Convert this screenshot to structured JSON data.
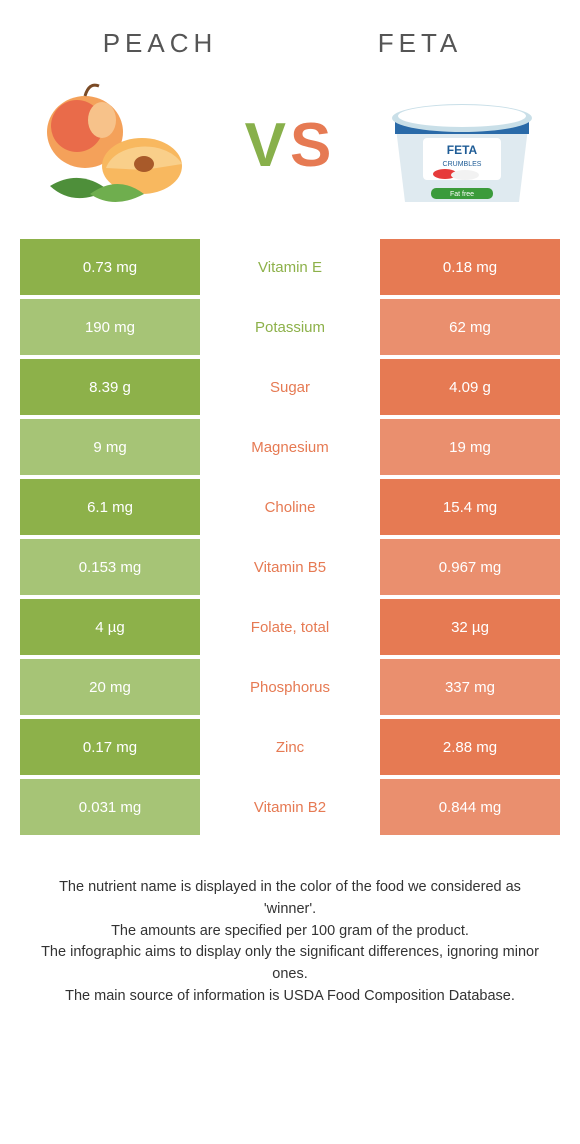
{
  "foodA": {
    "name": "PEACH",
    "color": "#8db14a",
    "cellShade": "#a6c476"
  },
  "foodB": {
    "name": "FETA",
    "color": "#e67a53",
    "cellShade": "#ea8f6e"
  },
  "vs": {
    "v": "V",
    "s": "S"
  },
  "rows": [
    {
      "nutrient": "Vitamin E",
      "a": "0.73 mg",
      "b": "0.18 mg",
      "winner": "A"
    },
    {
      "nutrient": "Potassium",
      "a": "190 mg",
      "b": "62 mg",
      "winner": "A"
    },
    {
      "nutrient": "Sugar",
      "a": "8.39 g",
      "b": "4.09 g",
      "winner": "B"
    },
    {
      "nutrient": "Magnesium",
      "a": "9 mg",
      "b": "19 mg",
      "winner": "B"
    },
    {
      "nutrient": "Choline",
      "a": "6.1 mg",
      "b": "15.4 mg",
      "winner": "B"
    },
    {
      "nutrient": "Vitamin B5",
      "a": "0.153 mg",
      "b": "0.967 mg",
      "winner": "B"
    },
    {
      "nutrient": "Folate, total",
      "a": "4 µg",
      "b": "32 µg",
      "winner": "B"
    },
    {
      "nutrient": "Phosphorus",
      "a": "20 mg",
      "b": "337 mg",
      "winner": "B"
    },
    {
      "nutrient": "Zinc",
      "a": "0.17 mg",
      "b": "2.88 mg",
      "winner": "B"
    },
    {
      "nutrient": "Vitamin B2",
      "a": "0.031 mg",
      "b": "0.844 mg",
      "winner": "B"
    }
  ],
  "footer": {
    "l1": "The nutrient name is displayed in the color of the food we considered as 'winner'.",
    "l2": "The amounts are specified per 100 gram of the product.",
    "l3": "The infographic aims to display only the significant differences, ignoring minor ones.",
    "l4": "The main source of information is USDA Food Composition Database."
  }
}
